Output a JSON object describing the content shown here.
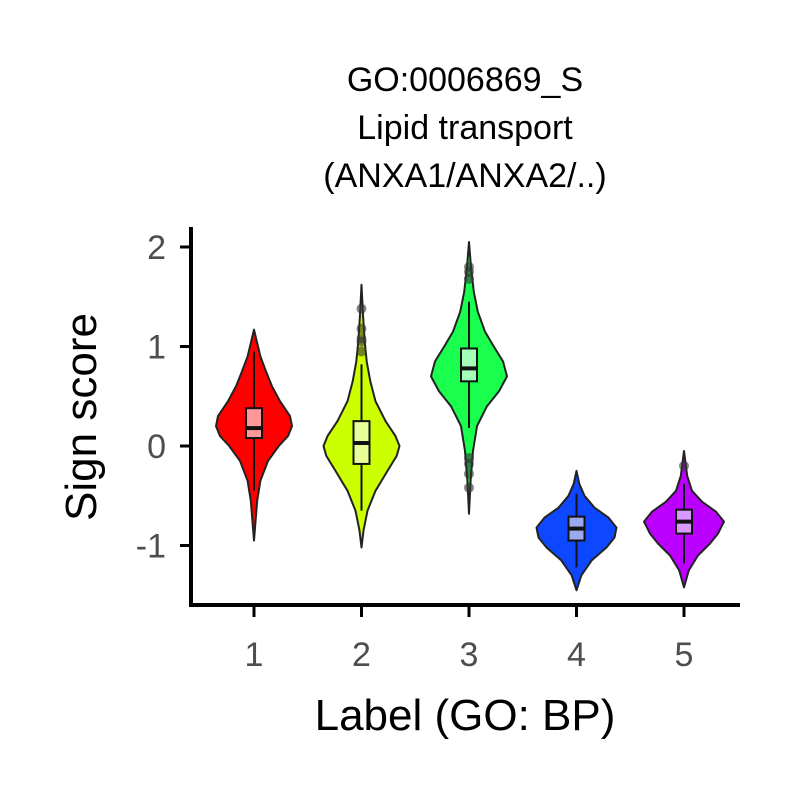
{
  "chart_data": {
    "type": "violin",
    "title_lines": [
      "GO:0006869_S",
      "Lipid transport",
      "(ANXA1/ANXA2/..)"
    ],
    "xlabel": "Label (GO: BP)",
    "ylabel": "Sign score",
    "ylim": [
      -1.6,
      2.2
    ],
    "y_ticks": [
      -1,
      0,
      1,
      2
    ],
    "y_tick_labels": [
      "-1",
      "0",
      "1",
      "2"
    ],
    "grid": false,
    "legend": "none",
    "categories": [
      "1",
      "2",
      "3",
      "4",
      "5"
    ],
    "groups": [
      {
        "label": "1",
        "color": "#FF0000",
        "box_color": "#FF9999",
        "min": -0.95,
        "max": 1.17,
        "q1": 0.08,
        "median": 0.18,
        "q3": 0.38,
        "whisker_low": -0.45,
        "whisker_high": 0.95,
        "outliers": [],
        "density": [
          [
            -0.95,
            0.0
          ],
          [
            -0.75,
            0.04
          ],
          [
            -0.55,
            0.08
          ],
          [
            -0.35,
            0.16
          ],
          [
            -0.15,
            0.35
          ],
          [
            0.0,
            0.62
          ],
          [
            0.1,
            0.85
          ],
          [
            0.2,
            0.95
          ],
          [
            0.3,
            0.9
          ],
          [
            0.45,
            0.65
          ],
          [
            0.6,
            0.45
          ],
          [
            0.75,
            0.3
          ],
          [
            0.9,
            0.16
          ],
          [
            1.05,
            0.07
          ],
          [
            1.17,
            0.0
          ]
        ]
      },
      {
        "label": "2",
        "color": "#CCFF00",
        "box_color": "#E8FF99",
        "min": -1.02,
        "max": 1.62,
        "q1": -0.18,
        "median": 0.03,
        "q3": 0.25,
        "whisker_low": -0.65,
        "whisker_high": 0.82,
        "outliers": [
          0.95,
          1.05,
          1.08,
          1.18,
          1.38
        ],
        "density": [
          [
            -1.02,
            0.0
          ],
          [
            -0.85,
            0.05
          ],
          [
            -0.65,
            0.15
          ],
          [
            -0.45,
            0.35
          ],
          [
            -0.25,
            0.65
          ],
          [
            -0.1,
            0.88
          ],
          [
            0.0,
            0.95
          ],
          [
            0.1,
            0.85
          ],
          [
            0.25,
            0.6
          ],
          [
            0.45,
            0.35
          ],
          [
            0.65,
            0.22
          ],
          [
            0.85,
            0.13
          ],
          [
            1.05,
            0.08
          ],
          [
            1.3,
            0.04
          ],
          [
            1.62,
            0.0
          ]
        ]
      },
      {
        "label": "3",
        "color": "#1AFF4D",
        "box_color": "#A3FFB8",
        "min": -0.68,
        "max": 2.05,
        "q1": 0.65,
        "median": 0.78,
        "q3": 0.98,
        "whisker_low": 0.18,
        "whisker_high": 1.45,
        "outliers": [
          -0.42,
          -0.28,
          -0.18,
          -0.12,
          1.68,
          1.75,
          1.8
        ],
        "density": [
          [
            -0.68,
            0.0
          ],
          [
            -0.35,
            0.04
          ],
          [
            -0.05,
            0.1
          ],
          [
            0.2,
            0.2
          ],
          [
            0.4,
            0.45
          ],
          [
            0.55,
            0.75
          ],
          [
            0.7,
            0.95
          ],
          [
            0.85,
            0.85
          ],
          [
            1.0,
            0.62
          ],
          [
            1.15,
            0.4
          ],
          [
            1.35,
            0.22
          ],
          [
            1.55,
            0.12
          ],
          [
            1.8,
            0.05
          ],
          [
            2.05,
            0.0
          ]
        ]
      },
      {
        "label": "4",
        "color": "#0D47FF",
        "box_color": "#99AAEE",
        "min": -1.45,
        "max": -0.25,
        "q1": -0.95,
        "median": -0.83,
        "q3": -0.71,
        "whisker_low": -1.22,
        "whisker_high": -0.48,
        "outliers": [],
        "density": [
          [
            -1.45,
            0.0
          ],
          [
            -1.3,
            0.12
          ],
          [
            -1.15,
            0.38
          ],
          [
            -1.02,
            0.75
          ],
          [
            -0.92,
            0.95
          ],
          [
            -0.82,
            1.0
          ],
          [
            -0.72,
            0.8
          ],
          [
            -0.62,
            0.45
          ],
          [
            -0.5,
            0.2
          ],
          [
            -0.38,
            0.07
          ],
          [
            -0.25,
            0.0
          ]
        ]
      },
      {
        "label": "5",
        "color": "#BB00FF",
        "box_color": "#D999FF",
        "min": -1.42,
        "max": -0.05,
        "q1": -0.88,
        "median": -0.76,
        "q3": -0.64,
        "whisker_low": -1.18,
        "whisker_high": -0.38,
        "outliers": [
          -0.2
        ],
        "density": [
          [
            -1.42,
            0.0
          ],
          [
            -1.25,
            0.12
          ],
          [
            -1.1,
            0.35
          ],
          [
            -0.98,
            0.65
          ],
          [
            -0.88,
            0.85
          ],
          [
            -0.76,
            1.0
          ],
          [
            -0.66,
            0.8
          ],
          [
            -0.56,
            0.45
          ],
          [
            -0.45,
            0.2
          ],
          [
            -0.3,
            0.08
          ],
          [
            -0.05,
            0.0
          ]
        ]
      }
    ]
  }
}
